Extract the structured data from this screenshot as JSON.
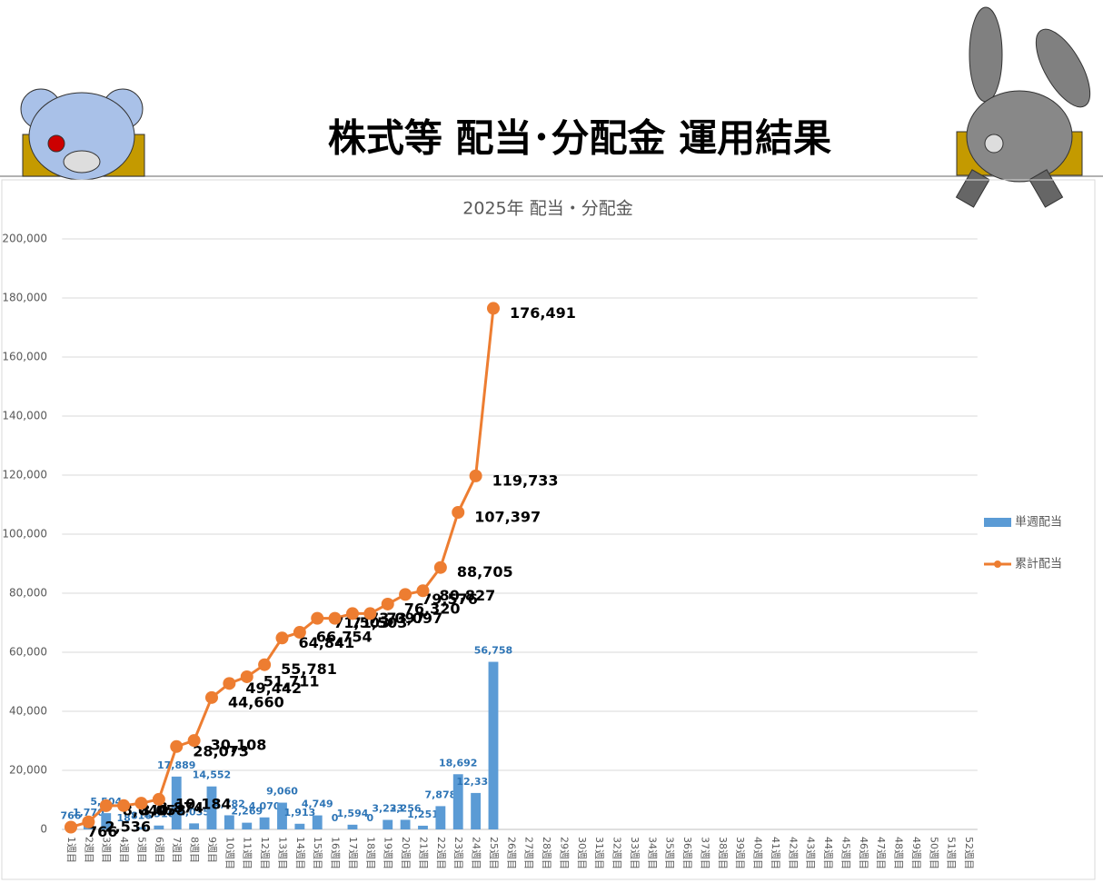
{
  "header": {
    "title": "株式等 配当･分配金 運用結果"
  },
  "chart_data": {
    "type": "bar-line",
    "title": "2025年 配当・分配金",
    "categories": [
      "1週目",
      "2週目",
      "3週目",
      "4週目",
      "5週目",
      "6週目",
      "7週目",
      "8週目",
      "9週目",
      "10週目",
      "11週目",
      "12週目",
      "13週目",
      "14週目",
      "15週目",
      "16週目",
      "17週目",
      "18週目",
      "19週目",
      "20週目",
      "21週目",
      "22週目",
      "23週目",
      "24週目",
      "25週目",
      "26週目",
      "27週目",
      "28週目",
      "29週目",
      "30週目",
      "31週目",
      "32週目",
      "33週目",
      "34週目",
      "35週目",
      "36週目",
      "37週目",
      "38週目",
      "39週目",
      "40週目",
      "41週目",
      "42週目",
      "43週目",
      "44週目",
      "45週目",
      "46週目",
      "47週目",
      "48週目",
      "49週目",
      "50週目",
      "51週目",
      "52週目"
    ],
    "series": [
      {
        "name": "単週配当",
        "color": "#5b9bd5",
        "kind": "bar",
        "values": [
          766,
          1770,
          5504,
          18,
          816,
          1310,
          17889,
          2035,
          14552,
          4782,
          2269,
          4070,
          9060,
          1913,
          4749,
          0,
          1594,
          0,
          3223,
          3256,
          1251,
          7878,
          18692,
          12336,
          56758,
          null,
          null,
          null,
          null,
          null,
          null,
          null,
          null,
          null,
          null,
          null,
          null,
          null,
          null,
          null,
          null,
          null,
          null,
          null,
          null,
          null,
          null,
          null,
          null,
          null,
          null,
          null
        ],
        "value_labels": [
          "766",
          "1,770",
          "5,504",
          "18",
          "816",
          "1,310",
          "17,889",
          "2,035",
          "14,552",
          "4,782",
          "2,269",
          "4,070",
          "9,060",
          "1,913",
          "4,749",
          "0",
          "1,594",
          "0",
          "3,223",
          "3,256",
          "1,251",
          "7,878",
          "18,692",
          "12,336",
          "56,758",
          null,
          null,
          null,
          null,
          null,
          null,
          null,
          null,
          null,
          null,
          null,
          null,
          null,
          null,
          null,
          null,
          null,
          null,
          null,
          null,
          null,
          null,
          null,
          null,
          null,
          null,
          null
        ]
      },
      {
        "name": "累計配当",
        "color": "#ed7d31",
        "kind": "line",
        "values": [
          766,
          2536,
          8040,
          8058,
          8874,
          10184,
          28073,
          30108,
          44660,
          49442,
          51711,
          55781,
          64841,
          66754,
          71503,
          71503,
          73097,
          73097,
          76320,
          79576,
          80827,
          88705,
          107397,
          119733,
          176491,
          null,
          null,
          null,
          null,
          null,
          null,
          null,
          null,
          null,
          null,
          null,
          null,
          null,
          null,
          null,
          null,
          null,
          null,
          null,
          null,
          null,
          null,
          null,
          null,
          null,
          null,
          null
        ],
        "value_labels": [
          "766",
          "2,536",
          "8,040",
          "8,058",
          "8,874",
          "10,184",
          "28,073",
          "30,108",
          "44,660",
          "49,442",
          "51,711",
          "55,781",
          "64,841",
          "66,754",
          "71,503",
          "71,503",
          "73,097",
          "73,097",
          "76,320",
          "79,576",
          "80,827",
          "88,705",
          "107,397",
          "119,733",
          "176,491",
          null,
          null,
          null,
          null,
          null,
          null,
          null,
          null,
          null,
          null,
          null,
          null,
          null,
          null,
          null,
          null,
          null,
          null,
          null,
          null,
          null,
          null,
          null,
          null,
          null,
          null,
          null
        ]
      }
    ],
    "ylim": [
      0,
      200000
    ],
    "yticks": [
      0,
      {
        "value": 20000,
        "label": "20,000"
      },
      {
        "value": 40000,
        "label": "40,000"
      },
      {
        "value": 60000,
        "label": "60,000"
      },
      {
        "value": 80000,
        "label": "80,000"
      },
      {
        "value": 100000,
        "label": "100,000"
      },
      {
        "value": 120000,
        "label": "120,000"
      },
      {
        "value": 140000,
        "label": "140,000"
      },
      {
        "value": 160000,
        "label": "160,000"
      },
      {
        "value": 180000,
        "label": "180,000"
      },
      {
        "value": 200000,
        "label": "200,000"
      }
    ],
    "grid": true,
    "legend": "right"
  }
}
